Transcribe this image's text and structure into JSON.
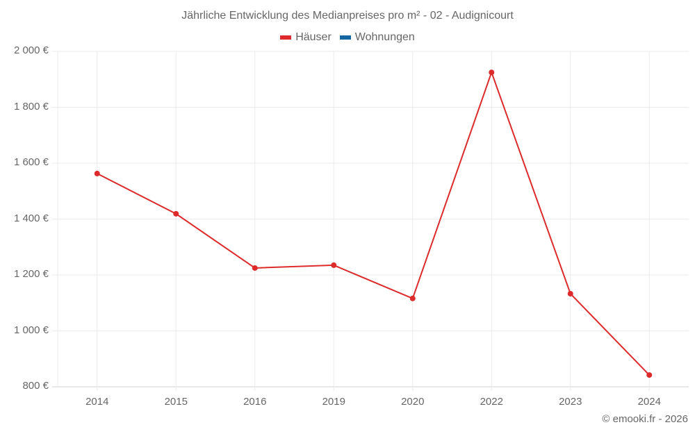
{
  "chart_data": {
    "type": "line",
    "title": "Jährliche Entwicklung des Medianpreises pro m² - 02 - Audignicourt",
    "xlabel": "",
    "ylabel": "",
    "categories": [
      "2014",
      "2015",
      "2016",
      "2019",
      "2020",
      "2022",
      "2023",
      "2024"
    ],
    "series": [
      {
        "name": "Häuser",
        "color": "#dd2a2a",
        "values": [
          1563,
          1419,
          1225,
          1235,
          1116,
          1925,
          1133,
          842
        ]
      },
      {
        "name": "Wohnungen",
        "color": "#1565a0",
        "values": []
      }
    ],
    "ylim": [
      800,
      2000
    ],
    "yticks": [
      800,
      1000,
      1200,
      1400,
      1600,
      1800,
      2000
    ],
    "ytick_labels": [
      "800 €",
      "1 000 €",
      "1 200 €",
      "1 400 €",
      "1 600 €",
      "1 800 €",
      "2 000 €"
    ],
    "grid": true,
    "legend_position": "top-center"
  },
  "legend": {
    "items": [
      {
        "label": "Häuser",
        "color": "#dd2a2a"
      },
      {
        "label": "Wohnungen",
        "color": "#1565a0"
      }
    ]
  },
  "footer": {
    "credit": "© emooki.fr - 2026"
  }
}
